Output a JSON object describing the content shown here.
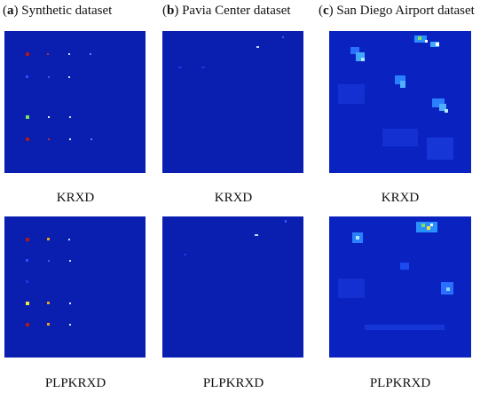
{
  "columns": [
    {
      "letter": "a",
      "title": "Synthetic dataset"
    },
    {
      "letter": "b",
      "title": "Pavia Center dataset"
    },
    {
      "letter": "c",
      "title": "San Diego Airport dataset"
    }
  ],
  "row_labels": [
    "KRXD",
    "PLPKRXD"
  ],
  "colors": {
    "background_low": "#0a1eb0",
    "red": "#b01818",
    "yellow": "#f0e640",
    "green": "#7ce060",
    "cyan": "#2aa8ff",
    "white_ish": "#c8d8ff"
  }
}
